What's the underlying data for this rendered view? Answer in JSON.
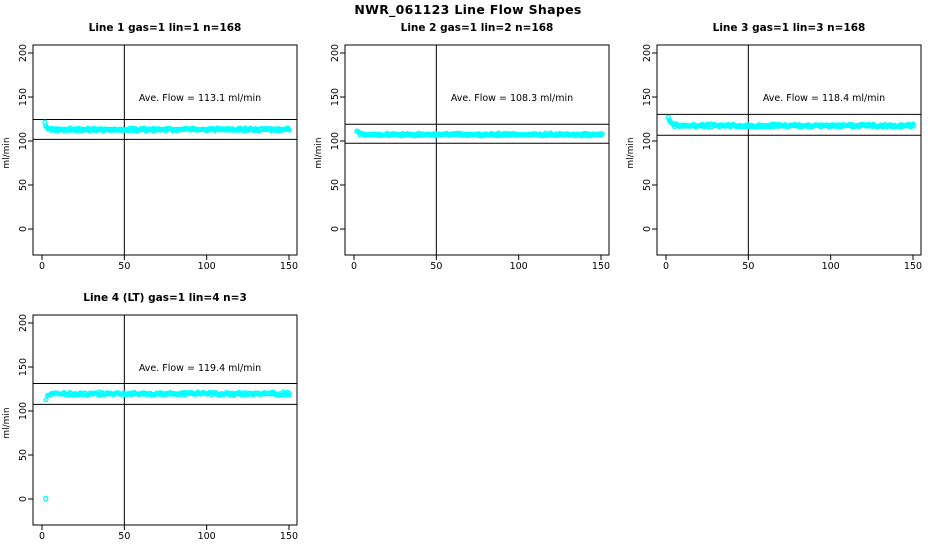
{
  "page": {
    "main_title": "NWR_061123  Line Flow Shapes"
  },
  "axis": {
    "ylabel": "ml/min",
    "xticks": [
      0,
      50,
      100,
      150
    ],
    "yticks": [
      0,
      50,
      100,
      150,
      200
    ],
    "xlim": [
      0,
      150
    ],
    "ylim": [
      0,
      200
    ]
  },
  "style": {
    "point_color": "#00FFFF",
    "line_color": "#000000",
    "background": "#FFFFFF"
  },
  "chart_data": [
    {
      "type": "scatter",
      "title": "Line 1 gas=1 lin=1 n=168",
      "annotation": "Ave. Flow =  113.1  ml/min",
      "ave_flow": 113.1,
      "n": 168,
      "ylabel": "ml/min",
      "xlim": [
        0,
        150
      ],
      "ylim": [
        0,
        200
      ],
      "xticks": [
        0,
        50,
        100,
        150
      ],
      "yticks": [
        0,
        50,
        100,
        150,
        200
      ],
      "vline_x": 50,
      "hlines": [
        124.4,
        101.8
      ],
      "band": {
        "mean": 113.0,
        "start_y": 121.5,
        "noise": 1.2,
        "x_start": 1.5,
        "x_end": 150.5,
        "n_points": 300
      },
      "outliers": []
    },
    {
      "type": "scatter",
      "title": "Line 2 gas=1 lin=2 n=168",
      "annotation": "Ave. Flow =  108.3  ml/min",
      "ave_flow": 108.3,
      "n": 168,
      "ylabel": "ml/min",
      "xlim": [
        0,
        150
      ],
      "ylim": [
        0,
        200
      ],
      "xticks": [
        0,
        50,
        100,
        150
      ],
      "yticks": [
        0,
        50,
        100,
        150,
        200
      ],
      "vline_x": 50,
      "hlines": [
        119.1,
        97.5
      ],
      "band": {
        "mean": 107.3,
        "start_y": 112.0,
        "noise": 1.2,
        "x_start": 1.5,
        "x_end": 150.5,
        "n_points": 300
      },
      "outliers": []
    },
    {
      "type": "scatter",
      "title": "Line 3 gas=1 lin=3 n=168",
      "annotation": "Ave. Flow =  118.4  ml/min",
      "ave_flow": 118.4,
      "n": 168,
      "ylabel": "ml/min",
      "xlim": [
        0,
        150
      ],
      "ylim": [
        0,
        200
      ],
      "xticks": [
        0,
        50,
        100,
        150
      ],
      "yticks": [
        0,
        50,
        100,
        150,
        200
      ],
      "vline_x": 50,
      "hlines": [
        130.2,
        106.6
      ],
      "band": {
        "mean": 117.4,
        "start_y": 126.5,
        "noise": 1.3,
        "x_start": 1.5,
        "x_end": 150.5,
        "n_points": 300
      },
      "outliers": []
    },
    {
      "type": "scatter",
      "title": "Line 4 (LT) gas=1 lin=4 n=3",
      "annotation": "Ave. Flow =  119.4  ml/min",
      "ave_flow": 119.4,
      "n": 3,
      "ylabel": "ml/min",
      "xlim": [
        0,
        150
      ],
      "ylim": [
        0,
        200
      ],
      "xticks": [
        0,
        50,
        100,
        150
      ],
      "yticks": [
        0,
        50,
        100,
        150,
        200
      ],
      "vline_x": 50,
      "hlines": [
        131.3,
        107.5
      ],
      "band": {
        "mean": 119.6,
        "start_y": 112.5,
        "noise": 1.4,
        "x_start": 2.5,
        "x_end": 150.5,
        "n_points": 230
      },
      "outliers": [
        [
          2.3,
          0.5
        ]
      ]
    }
  ]
}
